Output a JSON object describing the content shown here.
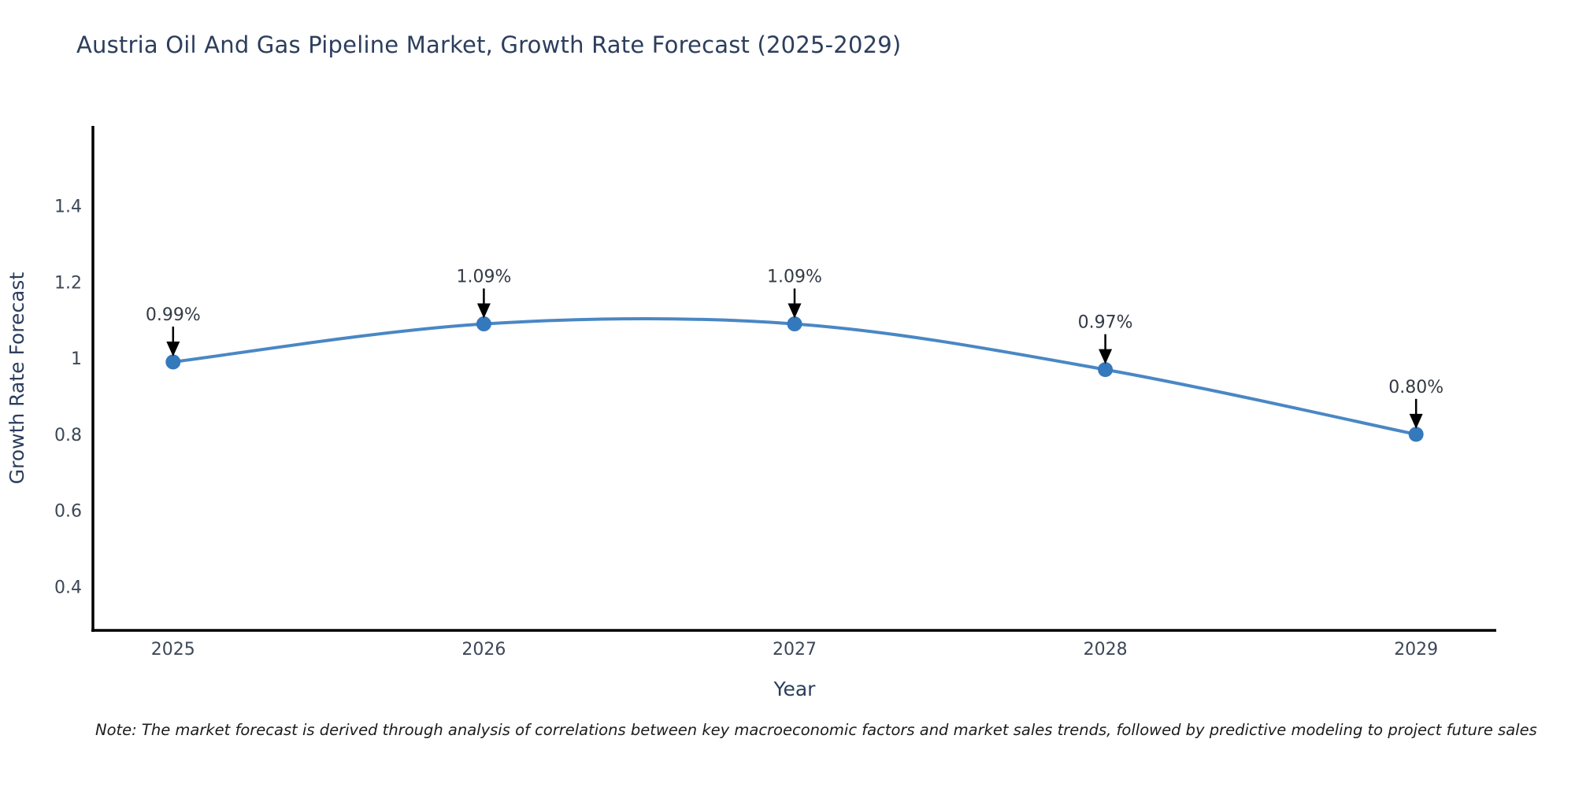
{
  "note": "Note: The market forecast is derived through analysis of correlations between key macroeconomic factors and market sales trends, followed by predictive modeling to project future sales",
  "chart_data": {
    "type": "line",
    "title": "Austria Oil And Gas Pipeline Market, Growth Rate Forecast (2025-2029)",
    "xlabel": "Year",
    "ylabel": "Growth Rate Forecast",
    "x": [
      2025,
      2026,
      2027,
      2028,
      2029
    ],
    "x_tick_labels": [
      "2025",
      "2026",
      "2027",
      "2028",
      "2029"
    ],
    "series": [
      {
        "name": "Growth Rate Forecast",
        "values": [
          0.99,
          1.09,
          1.09,
          0.97,
          0.8
        ],
        "point_labels": [
          "0.99%",
          "1.09%",
          "1.09%",
          "0.97%",
          "0.80%"
        ]
      }
    ],
    "y_ticks": [
      1.4,
      1.2,
      1,
      0.8,
      0.6,
      0.4
    ],
    "y_tick_labels": [
      "1.4",
      "1.2",
      "1",
      "0.8",
      "0.6",
      "0.4"
    ],
    "xlim": [
      2024.742,
      2029.258
    ],
    "ylim": [
      0.285,
      1.61
    ],
    "grid": false,
    "legend_position": "none",
    "line_shape": "spline",
    "annotation_style": "down-arrow",
    "colors": {
      "line": "#4a87c4",
      "marker": "#3579bd",
      "axis": "#000000",
      "title_text": "#2c3e5d",
      "axis_title_text": "#2c3e5d",
      "tick_text": "#3c4757",
      "annotation_text": "#333a45",
      "arrow": "#000000",
      "background": "#ffffff"
    }
  }
}
